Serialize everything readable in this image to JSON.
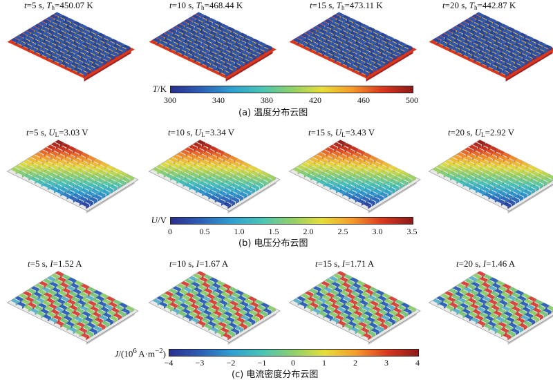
{
  "rows": [
    {
      "panels": [
        {
          "t_label": "t",
          "t_val": "=5 s, ",
          "var": "T",
          "sub": "h",
          "val": "=450.07 K"
        },
        {
          "t_label": "t",
          "t_val": "=10 s, ",
          "var": "T",
          "sub": "h",
          "val": "=468.44 K"
        },
        {
          "t_label": "t",
          "t_val": "=15 s, ",
          "var": "T",
          "sub": "h",
          "val": "=473.11 K"
        },
        {
          "t_label": "t",
          "t_val": "=20 s, ",
          "var": "T",
          "sub": "h",
          "val": "=442.87 K"
        }
      ],
      "colorbar_title_var": "T",
      "colorbar_title_unit": "/K",
      "ticks": [
        "300",
        "340",
        "380",
        "420",
        "460",
        "500"
      ],
      "caption": "(a) 温度分布云图"
    },
    {
      "panels": [
        {
          "t_label": "t",
          "t_val": "=5 s, ",
          "var": "U",
          "sub": "L",
          "val": "=3.03 V"
        },
        {
          "t_label": "t",
          "t_val": "=10 s, ",
          "var": "U",
          "sub": "L",
          "val": "=3.34 V"
        },
        {
          "t_label": "t",
          "t_val": "=15 s, ",
          "var": "U",
          "sub": "L",
          "val": "=3.43 V"
        },
        {
          "t_label": "t",
          "t_val": "=20 s, ",
          "var": "U",
          "sub": "L",
          "val": "=2.92 V"
        }
      ],
      "colorbar_title_var": "U",
      "colorbar_title_unit": "/V",
      "ticks": [
        "0",
        "0.5",
        "1.0",
        "1.5",
        "2.0",
        "2.5",
        "3.0",
        "3.5"
      ],
      "caption": "(b) 电压分布云图"
    },
    {
      "panels": [
        {
          "t_label": "t",
          "t_val": "=5 s, ",
          "var": "I",
          "sub": "",
          "val": "=1.52 A"
        },
        {
          "t_label": "t",
          "t_val": "=10 s, ",
          "var": "I",
          "sub": "",
          "val": "=1.67 A"
        },
        {
          "t_label": "t",
          "t_val": "=15 s, ",
          "var": "I",
          "sub": "",
          "val": "=1.71 A"
        },
        {
          "t_label": "t",
          "t_val": "=20 s, ",
          "var": "I",
          "sub": "",
          "val": "=1.46 A"
        }
      ],
      "colorbar_title_var": "J",
      "colorbar_title_unit_pre": "/(10",
      "colorbar_title_sup": "6",
      "colorbar_title_unit_post": " A·m",
      "colorbar_title_sup2": "−2",
      "colorbar_title_close": ")",
      "ticks": [
        "−4",
        "−3",
        "−2",
        "−1",
        "0",
        "1",
        "2",
        "3",
        "4"
      ],
      "caption": "(c) 电流密度分布云图"
    }
  ],
  "colormap": [
    "#2b2f8f",
    "#2c5fb8",
    "#2f9fd0",
    "#49c4b6",
    "#8fd06a",
    "#e6de3a",
    "#f59a2c",
    "#d9381e",
    "#8c1a1a"
  ],
  "plate_colors": {
    "temperature_cells": "#26479c",
    "temperature_base_edge": "#d9381e",
    "voltage_base": "#e8e8e8",
    "current_base": "#e8e8e8"
  }
}
